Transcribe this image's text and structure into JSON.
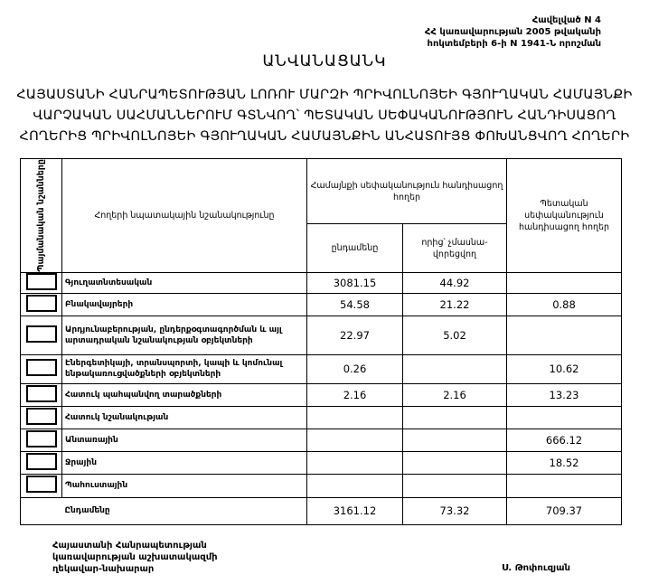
{
  "appendix": {
    "line1": "Հավելված N 4",
    "line2": "ՀՀ կառավարության 2005 թվականի",
    "line3": "հոկտեմբերի 6-ի N 1941-Ն որոշման"
  },
  "title": "ԱՆՎԱՆԱՑԱՆԿ",
  "heading": {
    "line1": "ՀԱՅԱՍՏԱՆԻ ՀԱՆՐԱՊԵՏՈՒԹՅԱՆ ԼՈՌՈՒ ՄԱՐԶԻ ՊՐԻՎՈԼՆՈՅԵԻ ԳՅՈՒՂԱԿԱՆ ՀԱՄԱՅՆՔԻ",
    "line2": "ՎԱՐՉԱԿԱՆ ՍԱՀՄԱՆՆԵՐՈՒՄ ԳՏՆՎՈՂ՝ ՊԵՏԱԿԱՆ ՍԵՓԱԿԱՆՈՒԹՅՈՒՆ ՀԱՆԴԻՍԱՑՈՂ",
    "line3": "ՀՈՂԵՐԻՑ ՊՐԻՎՈԼՆՈՅԵԻ ԳՅՈՒՂԱԿԱՆ ՀԱՄԱՅՆՔԻՆ ԱՆՀԱՏՈՒՅՑ ՓՈԽԱՆՑՎՈՂ ՀՈՂԵՐԻ"
  },
  "table": {
    "headers": {
      "symbols": "Պայմանական նշանները",
      "purpose": "Հողերի նպատակային նշանակությունը",
      "community": "Համայնքի սեփականություն հանդիսացող հողեր",
      "total": "ընդամենը",
      "non_privatizable": "որից՝ չմասնա-վորեցվող",
      "state": "Պետական սեփականություն հանդիսացող հողեր"
    },
    "rows": [
      {
        "label": "Գյուղատնտեսական",
        "total": "3081.15",
        "non_privatizable": "44.92",
        "state": ""
      },
      {
        "label": "Բնակավայրերի",
        "total": "54.58",
        "non_privatizable": "21.22",
        "state": "0.88"
      },
      {
        "label": "Արդյունաբերության, ընդերքօգտագործման և այլ արտադրական նշանակության օբյեկտների",
        "total": "22.97",
        "non_privatizable": "5.02",
        "state": ""
      },
      {
        "label": "Էներգետիկայի, տրանսպորտի, կապի և կոմունալ ենթակառուցվածքների օբյեկտների",
        "total": "0.26",
        "non_privatizable": "",
        "state": "10.62"
      },
      {
        "label": "Հատուկ պահպանվող տարածքների",
        "total": "2.16",
        "non_privatizable": "2.16",
        "state": "13.23"
      },
      {
        "label": "Հատուկ նշանակության",
        "total": "",
        "non_privatizable": "",
        "state": ""
      },
      {
        "label": "Անտառային",
        "total": "",
        "non_privatizable": "",
        "state": "666.12"
      },
      {
        "label": "Ջրային",
        "total": "",
        "non_privatizable": "",
        "state": "18.52"
      },
      {
        "label": "Պահուստային",
        "total": "",
        "non_privatizable": "",
        "state": ""
      }
    ],
    "totals": {
      "label": "Ընդամենը",
      "total": "3161.12",
      "non_privatizable": "73.32",
      "state": "709.37"
    }
  },
  "footer": {
    "line1": "Հայաստանի Հանրապետության",
    "line2": "կառավարության աշխատակազմի",
    "line3": "ղեկավար-նախարար",
    "signature": "Ս. Թոփուզյան"
  }
}
